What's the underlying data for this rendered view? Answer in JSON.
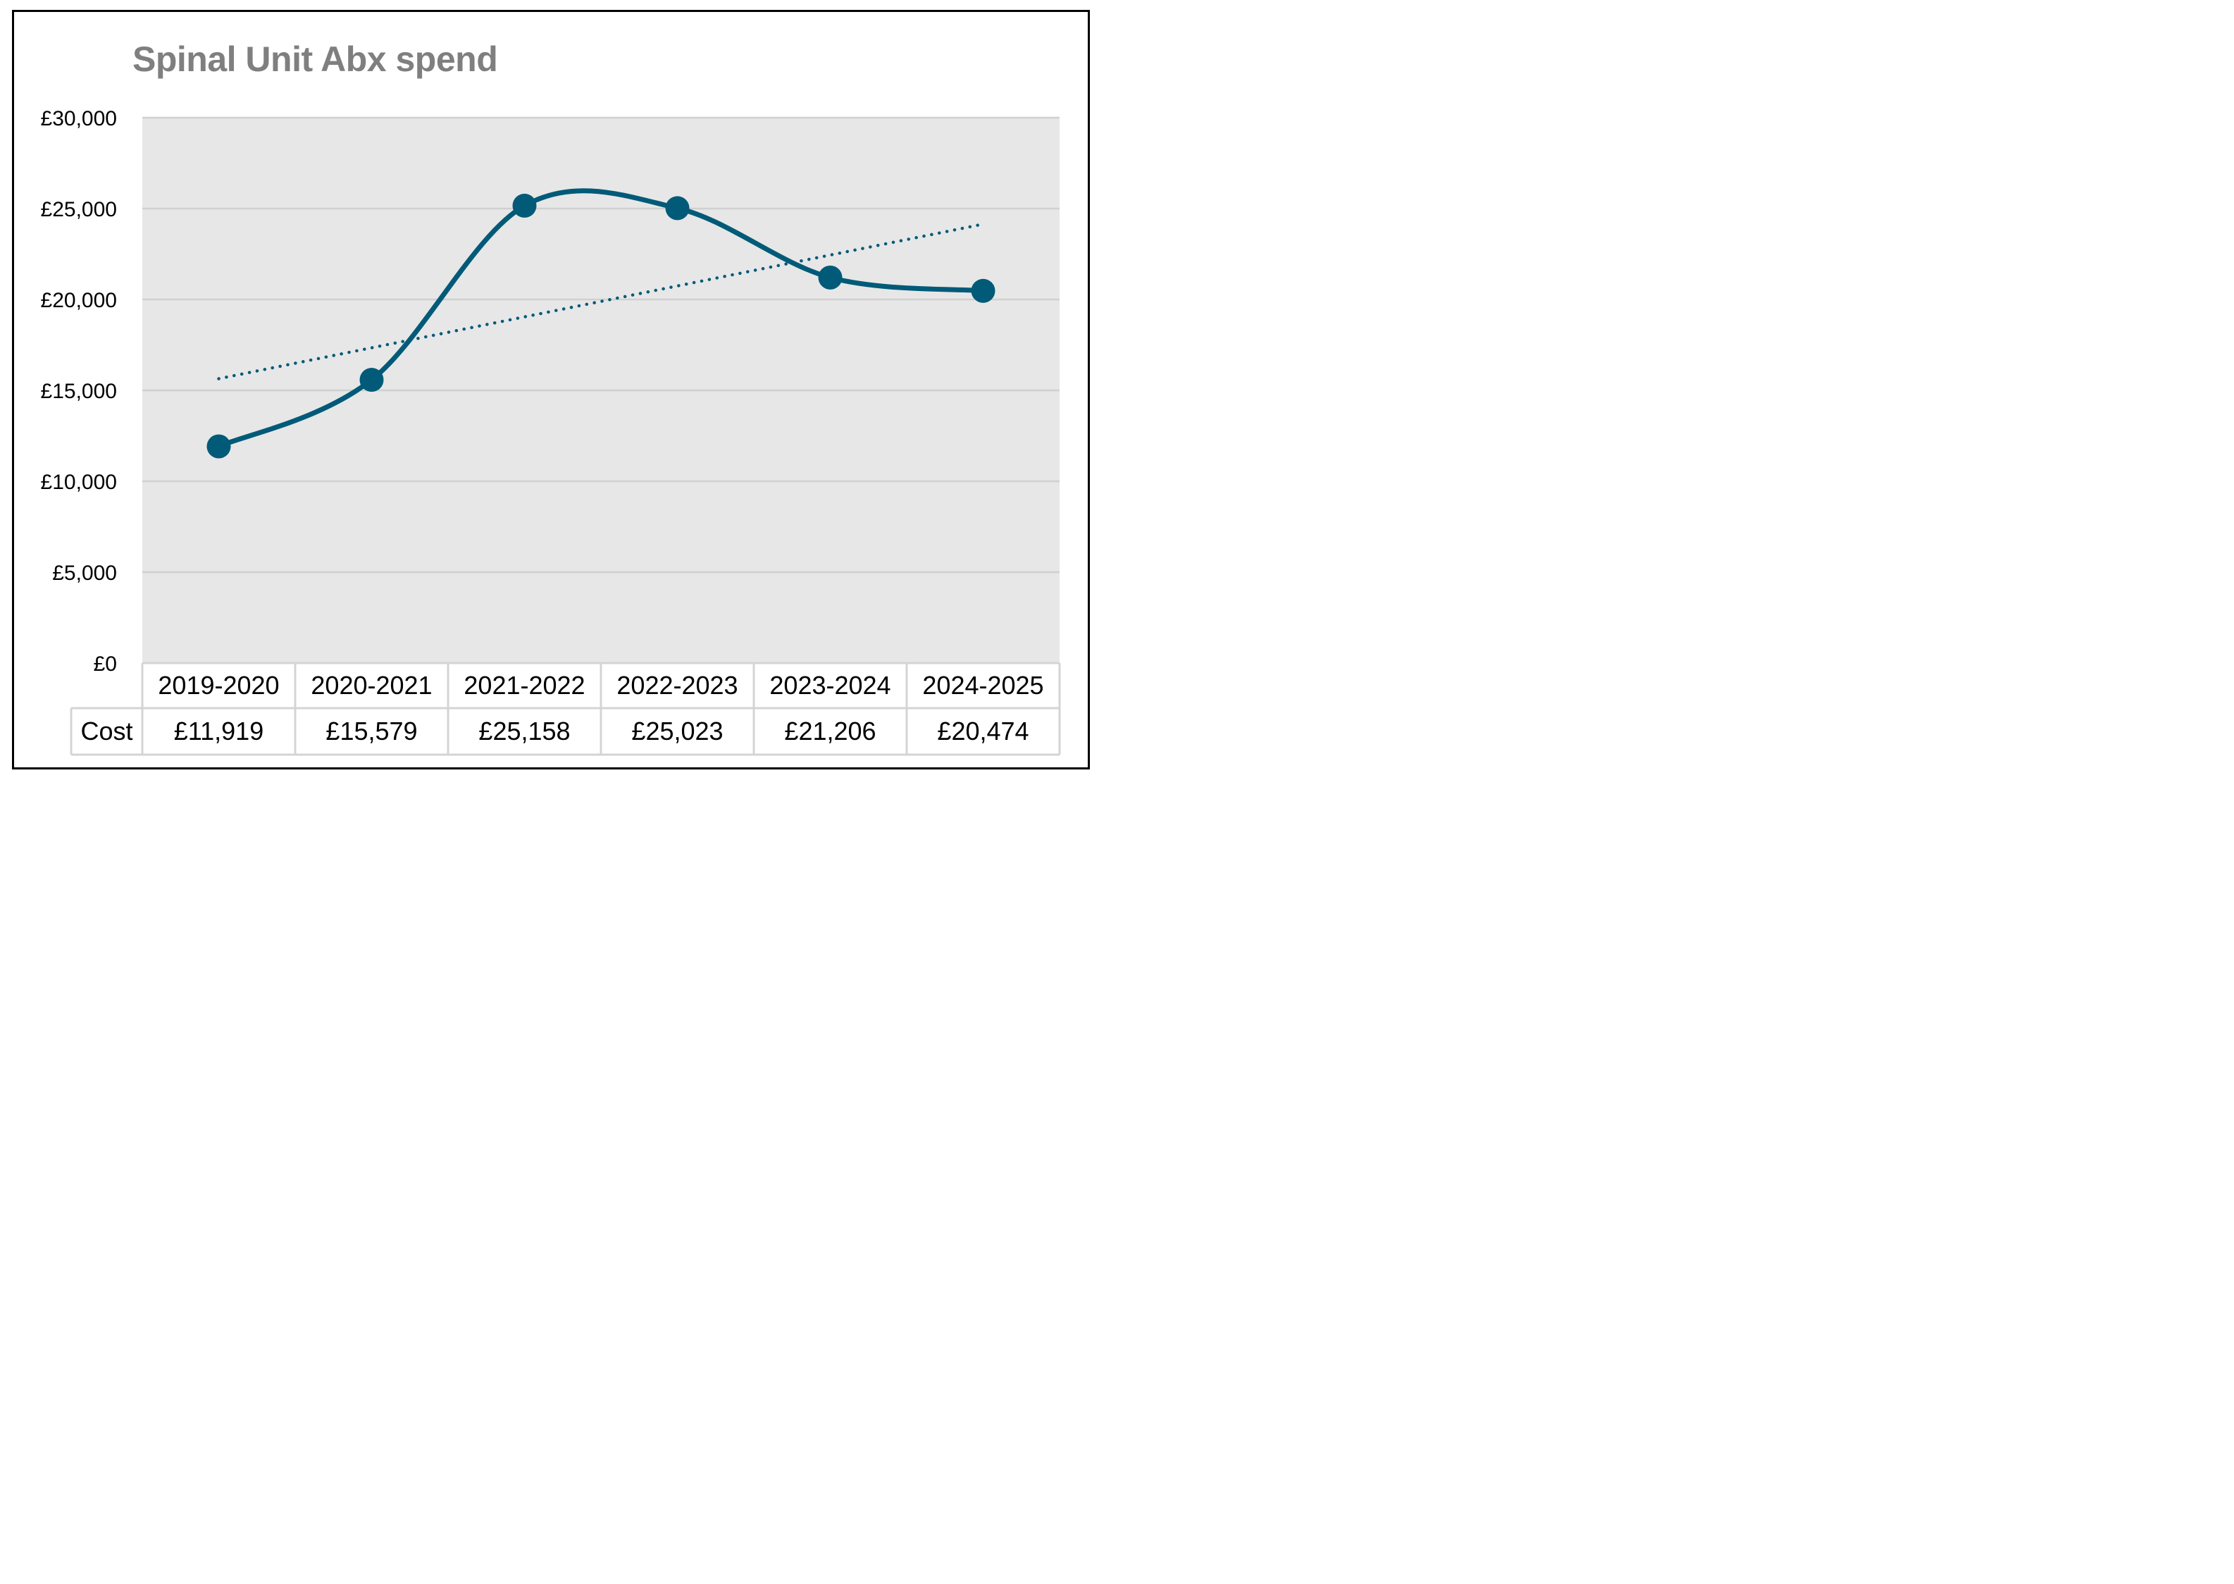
{
  "chart_data": {
    "type": "line",
    "title": "Spinal Unit Abx spend",
    "categories": [
      "2019-2020",
      "2020-2021",
      "2021-2022",
      "2022-2023",
      "2023-2024",
      "2024-2025"
    ],
    "series": [
      {
        "name": "Cost",
        "values": [
          11919,
          15579,
          25158,
          25023,
          21206,
          20474
        ],
        "value_labels": [
          "£11,919",
          "£15,579",
          "£25,158",
          "£25,023",
          "£21,206",
          "£20,474"
        ],
        "color": "#005a78",
        "smoothed": true,
        "markers": true
      }
    ],
    "trendline": {
      "type": "linear",
      "style": "dotted",
      "color": "#005a78"
    },
    "ylim": [
      0,
      30000
    ],
    "yticks": [
      0,
      5000,
      10000,
      15000,
      20000,
      25000,
      30000
    ],
    "ytick_labels": [
      "£0",
      "£5,000",
      "£10,000",
      "£15,000",
      "£20,000",
      "£25,000",
      "£30,000"
    ],
    "grid": true,
    "plot_background": "#e7e7e7",
    "data_table": true
  }
}
